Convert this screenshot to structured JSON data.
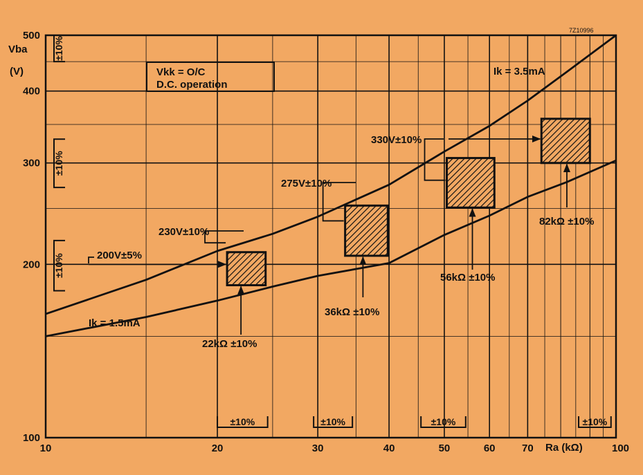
{
  "chart_data": {
    "type": "line",
    "code": "7Z10996",
    "x_scale": "log",
    "y_scale": "log",
    "xlim": [
      10,
      100
    ],
    "ylim": [
      100,
      500
    ],
    "x_ticks": [
      10,
      20,
      30,
      40,
      50,
      60,
      70,
      100
    ],
    "x_tick_labels": [
      "10",
      "20",
      "30",
      "40",
      "50",
      "60",
      "70",
      "100"
    ],
    "y_ticks": [
      100,
      200,
      300,
      400,
      500
    ],
    "y_tick_labels": [
      "100",
      "200",
      "300",
      "400",
      "500"
    ],
    "xlabel": "Ra (kΩ)",
    "ylabel_lines": [
      "Vba",
      "(V)"
    ],
    "grid": true,
    "condition_lines": [
      "Vkk = O/C",
      "D.C. operation"
    ],
    "series": [
      {
        "name": "Ik = 3.5mA",
        "x": [
          10,
          15,
          20,
          25,
          30,
          40,
          50,
          60,
          70,
          82,
          100
        ],
        "y": [
          164,
          188,
          211,
          226,
          242,
          275,
          314,
          348,
          385,
          432,
          500
        ]
      },
      {
        "name": "Ik = 1.5mA",
        "x": [
          10,
          15,
          20,
          25,
          30,
          40,
          50,
          60,
          70,
          82,
          100
        ],
        "y": [
          150,
          162,
          173,
          183,
          191,
          201,
          225,
          243,
          262,
          278,
          303
        ]
      }
    ],
    "boxes": [
      {
        "r_label": "22kΩ ±10%",
        "v_label": "230V±10%",
        "x_min": 20.8,
        "x_max": 24.3,
        "y_min": 184,
        "y_max": 210,
        "ra_arrow_x": 22,
        "v_arrow_y": 230
      },
      {
        "r_label": "36kΩ ±10%",
        "v_label": "275V±10%",
        "x_min": 33.5,
        "x_max": 39.8,
        "y_min": 207,
        "y_max": 253,
        "ra_arrow_x": 36,
        "v_arrow_y": 275
      },
      {
        "r_label": "56kΩ ±10%",
        "v_label": "330V±10%",
        "x_min": 50.5,
        "x_max": 61.2,
        "y_min": 251,
        "y_max": 306,
        "ra_arrow_x": 56,
        "v_arrow_y": 330
      },
      {
        "r_label": "82kΩ ±10%",
        "v_label": "",
        "x_min": 74,
        "x_max": 90,
        "y_min": 300,
        "y_max": 358,
        "ra_arrow_x": 82,
        "v_arrow_y": 330
      }
    ],
    "v200": {
      "label": "200V±5%",
      "y": 200
    },
    "tolerance_label": "±10%",
    "x_tolerance_brackets": [
      [
        20,
        24.5
      ],
      [
        29.5,
        34.5
      ],
      [
        45.5,
        54.5
      ],
      [
        86,
        98
      ]
    ],
    "y_tolerance_brackets": [
      [
        450,
        500
      ],
      [
        272,
        330
      ],
      [
        180,
        220
      ]
    ]
  }
}
